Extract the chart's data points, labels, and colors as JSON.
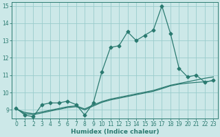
{
  "title": "",
  "xlabel": "Humidex (Indice chaleur)",
  "ylabel": "",
  "bg_color": "#cce8e8",
  "grid_color": "#99cccc",
  "line_color": "#2a7a70",
  "xlim": [
    -0.5,
    23.5
  ],
  "ylim": [
    8.5,
    15.2
  ],
  "yticks": [
    9,
    10,
    11,
    12,
    13,
    14,
    15
  ],
  "xticks": [
    0,
    1,
    2,
    3,
    4,
    5,
    6,
    7,
    8,
    9,
    10,
    11,
    12,
    13,
    14,
    15,
    16,
    17,
    18,
    19,
    20,
    21,
    22,
    23
  ],
  "series1_x": [
    0,
    1,
    2,
    3,
    4,
    5,
    6,
    7,
    8,
    9,
    10,
    11,
    12,
    13,
    14,
    15,
    16,
    17,
    18,
    19,
    20,
    21,
    22,
    23
  ],
  "series1_y": [
    9.1,
    8.7,
    8.6,
    9.3,
    9.4,
    9.4,
    9.5,
    9.3,
    8.7,
    9.4,
    11.2,
    12.6,
    12.7,
    13.5,
    13.0,
    13.3,
    13.6,
    15.0,
    13.4,
    11.4,
    10.9,
    11.0,
    10.6,
    10.7
  ],
  "series2_x": [
    0,
    1,
    2,
    3,
    4,
    5,
    6,
    7,
    8,
    9,
    10,
    11,
    12,
    13,
    14,
    15,
    16,
    17,
    18,
    19,
    20,
    21,
    22,
    23
  ],
  "series2_y": [
    9.05,
    8.85,
    8.78,
    8.88,
    8.98,
    9.08,
    9.18,
    9.23,
    9.05,
    9.28,
    9.48,
    9.62,
    9.72,
    9.82,
    9.92,
    10.02,
    10.12,
    10.27,
    10.42,
    10.52,
    10.62,
    10.72,
    10.82,
    10.9
  ],
  "series3_x": [
    0,
    1,
    2,
    3,
    4,
    5,
    6,
    7,
    8,
    9,
    10,
    11,
    12,
    13,
    14,
    15,
    16,
    17,
    18,
    19,
    20,
    21,
    22,
    23
  ],
  "series3_y": [
    9.05,
    8.78,
    8.72,
    8.82,
    8.93,
    9.03,
    9.13,
    9.18,
    9.0,
    9.22,
    9.43,
    9.57,
    9.67,
    9.77,
    9.87,
    9.97,
    10.07,
    10.22,
    10.38,
    10.48,
    10.54,
    10.58,
    10.62,
    10.68
  ]
}
